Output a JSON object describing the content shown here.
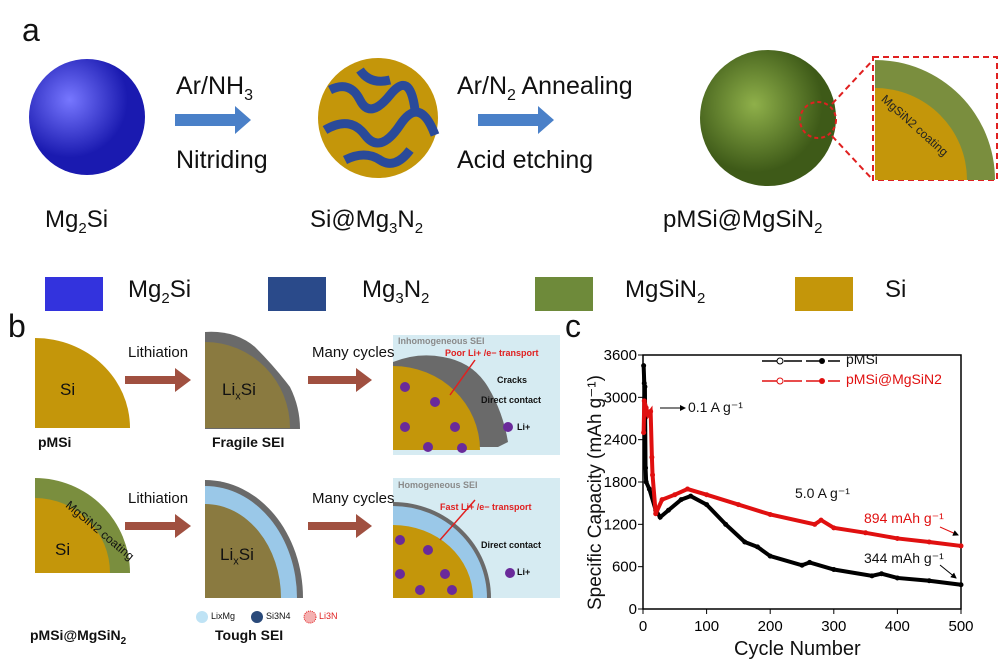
{
  "panel_a": {
    "letter": "a",
    "step1_top": "Ar/NH",
    "step1_top_sub": "3",
    "step1_bottom": "Nitriding",
    "step2_top_a": "Ar/N",
    "step2_top_sub": "2",
    "step2_top_b": " Annealing",
    "step2_bottom": "Acid etching",
    "inset_label": "MgSiN2 coating",
    "materials": [
      {
        "a": "Mg",
        "s": "2",
        "b": "Si"
      },
      {
        "a": "Si@Mg",
        "s": "3",
        "b": "N",
        "s2": "2"
      },
      {
        "a": "pMSi@MgSiN",
        "s": "2",
        "b": ""
      }
    ],
    "legend": [
      {
        "a": "Mg",
        "s": "2",
        "b": "Si",
        "color": "#3333dd"
      },
      {
        "a": "Mg",
        "s": "3",
        "b": "N",
        "s2": "2",
        "color": "#2a4a8a"
      },
      {
        "a": "MgSiN",
        "s": "2",
        "b": "",
        "color": "#6e8a3a"
      },
      {
        "a": "Si",
        "s": "",
        "b": "",
        "color": "#c4960a"
      }
    ]
  },
  "panel_b": {
    "letter": "b",
    "si": "Si",
    "lixsi_a": "Li",
    "lixsi_s": "x",
    "lixsi_b": "Si",
    "lithiation": "Lithiation",
    "many_cycles": "Many cycles",
    "pmsi": "pMSi",
    "fragile": "Fragile SEI",
    "pmsi_mg": "pMSi@MgSiN",
    "pmsi_mg_sub": "2",
    "tough": "Tough SEI",
    "coating": "MgSiN2 coating",
    "top_box": {
      "inhomo": "Inhomogeneous SEI",
      "poor": "Poor Li+ /e− transport",
      "cracks": "Cracks",
      "direct": "Direct contact",
      "li": "Li+"
    },
    "bot_box": {
      "homo": "Homogeneous SEI",
      "fast": "Fast Li+ /e− transport",
      "direct": "Direct contact",
      "li": "Li+"
    },
    "legend": [
      "LixMg",
      "Si3N4",
      "Li3N"
    ]
  },
  "chart_data": {
    "type": "line",
    "panel_letter": "c",
    "xlabel": "Cycle Number",
    "ylabel": "Specific Capacity (mAh g⁻¹)",
    "xlim": [
      0,
      500
    ],
    "ylim": [
      0,
      3600
    ],
    "xticks": [
      0,
      100,
      200,
      300,
      400,
      500
    ],
    "yticks": [
      0,
      600,
      1200,
      1800,
      2400,
      3000,
      3600
    ],
    "legend_position": "top-right",
    "annotations": {
      "rate_low": "0.1 A g⁻¹",
      "rate_high": "5.0 A g⁻¹",
      "final_coated": "894 mAh g⁻¹",
      "final_bare": "344 mAh g⁻¹"
    },
    "series": [
      {
        "name": "pMSi",
        "color": "#000000",
        "x": [
          1,
          2,
          3,
          4,
          5,
          10,
          20,
          27,
          40,
          60,
          75,
          100,
          130,
          160,
          180,
          200,
          250,
          262,
          300,
          360,
          375,
          400,
          450,
          500
        ],
        "y": [
          3450,
          3200,
          3150,
          2000,
          1800,
          1700,
          1400,
          1300,
          1400,
          1550,
          1600,
          1480,
          1200,
          950,
          880,
          750,
          620,
          660,
          560,
          470,
          500,
          440,
          400,
          344
        ]
      },
      {
        "name": "pMSi@MgSiN2",
        "color": "#e01010",
        "x": [
          1,
          2,
          3,
          5,
          8,
          12,
          14,
          15,
          20,
          30,
          50,
          70,
          100,
          150,
          200,
          270,
          280,
          300,
          350,
          400,
          450,
          500
        ],
        "y": [
          2500,
          2950,
          2800,
          2850,
          2750,
          2800,
          2150,
          1900,
          1350,
          1550,
          1620,
          1700,
          1620,
          1480,
          1340,
          1200,
          1260,
          1150,
          1080,
          1000,
          950,
          894
        ]
      }
    ]
  }
}
